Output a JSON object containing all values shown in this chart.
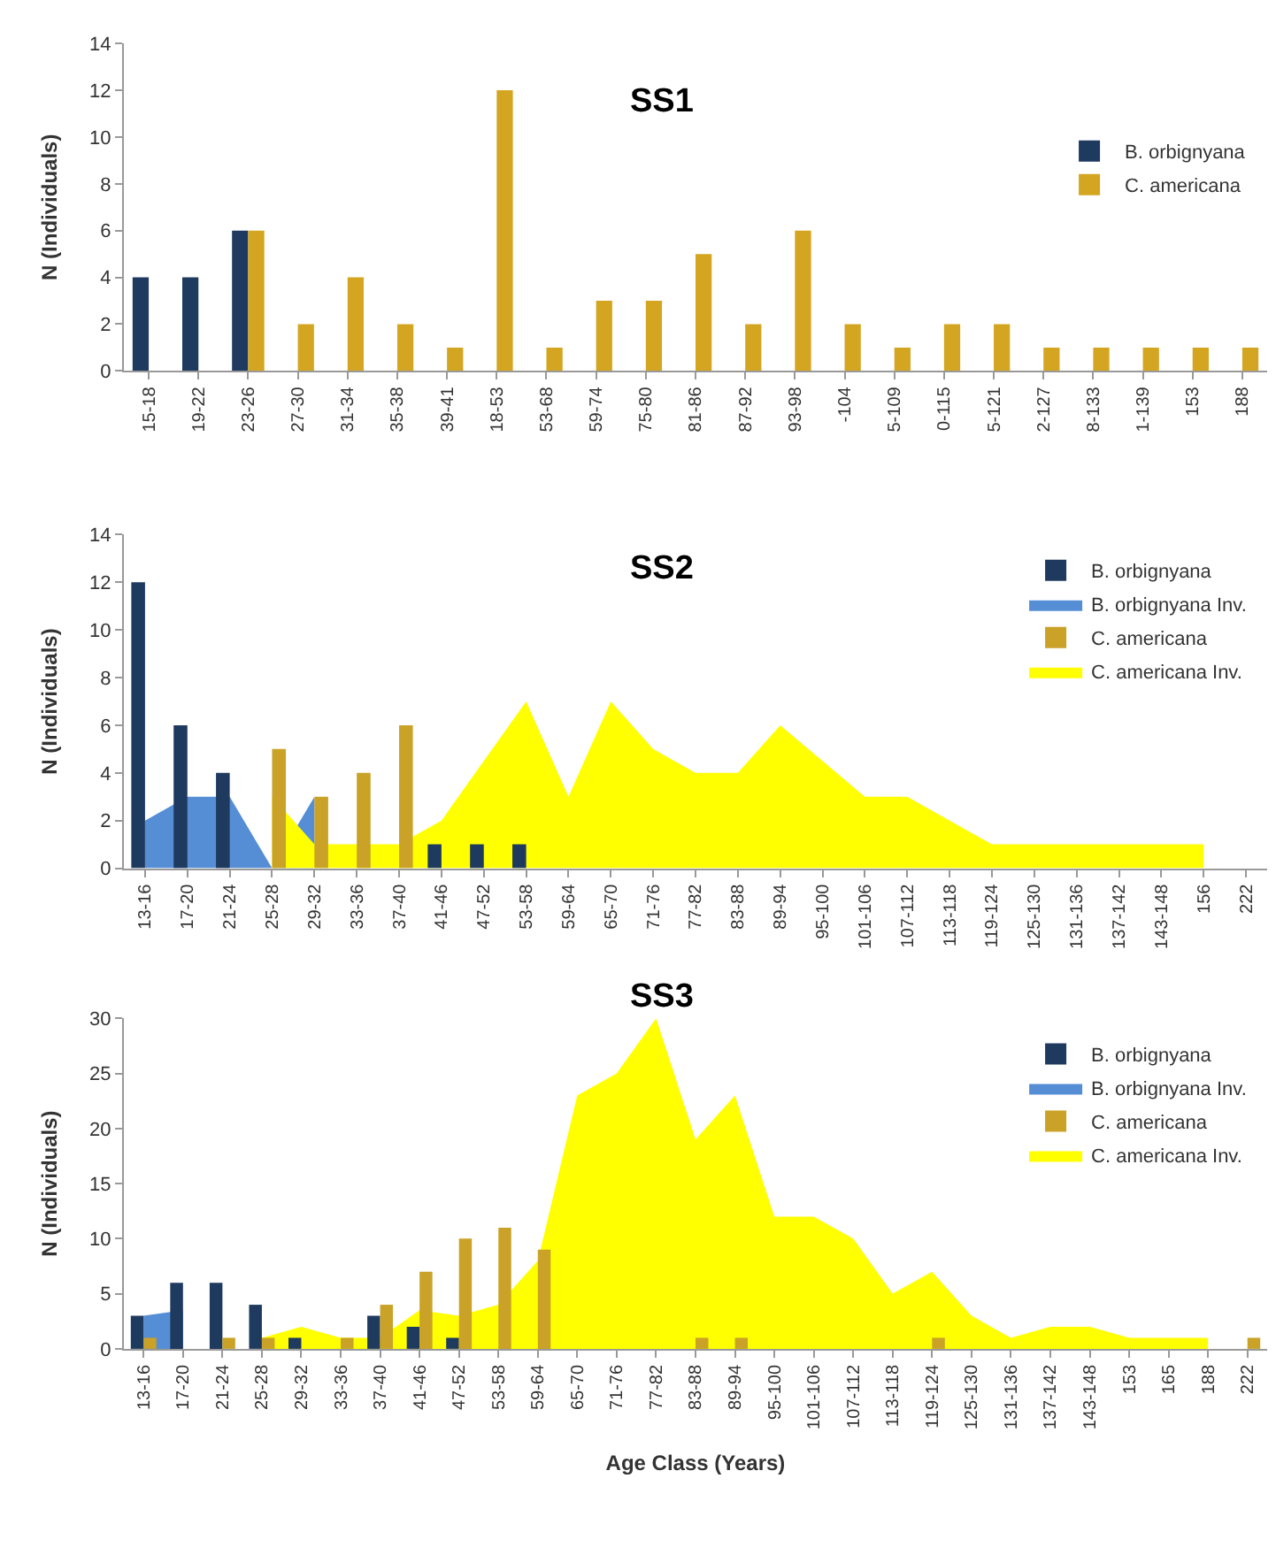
{
  "chart_data": [
    {
      "type": "bar",
      "title": "SS1",
      "ylabel": "N (Individuals)",
      "categories": [
        "15-18",
        "19-22",
        "23-26",
        "27-30",
        "31-34",
        "35-38",
        "39-41",
        "18-53",
        "53-68",
        "59-74",
        "75-80",
        "81-86",
        "87-92",
        "93-98",
        "-104",
        "5-109",
        "0-115",
        "5-121",
        "2-127",
        "8-133",
        "1-139",
        "153",
        "188"
      ],
      "series": [
        {
          "name": "B. orbignyana",
          "color": "#1f3a5f",
          "values": [
            4,
            4,
            6,
            null,
            null,
            null,
            null,
            null,
            null,
            null,
            null,
            null,
            null,
            null,
            null,
            null,
            null,
            null,
            null,
            null,
            null,
            null,
            null
          ]
        },
        {
          "name": "C. americana",
          "color": "#d4a520",
          "values": [
            null,
            null,
            6,
            2,
            4,
            2,
            1,
            12,
            1,
            3,
            3,
            5,
            2,
            6,
            2,
            1,
            2,
            2,
            1,
            1,
            1,
            1,
            1
          ]
        }
      ],
      "ylim": [
        0,
        14
      ],
      "yticks": [
        0,
        2,
        4,
        6,
        8,
        10,
        12,
        14
      ],
      "legend": "right"
    },
    {
      "type": "bar",
      "title": "SS2",
      "ylabel": "N (Individuals)",
      "categories": [
        "13-16",
        "17-20",
        "21-24",
        "25-28",
        "29-32",
        "33-36",
        "37-40",
        "41-46",
        "47-52",
        "53-58",
        "59-64",
        "65-70",
        "71-76",
        "77-82",
        "83-88",
        "89-94",
        "95-100",
        "101-106",
        "107-112",
        "113-118",
        "119-124",
        "125-130",
        "131-136",
        "137-142",
        "143-148",
        "156",
        "222"
      ],
      "series": [
        {
          "name": "B. orbignyana",
          "color": "#1f3a5f",
          "values": [
            12,
            6,
            4,
            null,
            null,
            null,
            null,
            1,
            1,
            1,
            null,
            null,
            null,
            null,
            null,
            null,
            null,
            null,
            null,
            null,
            null,
            null,
            null,
            null,
            null,
            null,
            null
          ]
        },
        {
          "name": "B. orbignyana Inv.",
          "type": "area",
          "color": "#558ed5",
          "values": [
            2,
            3,
            3,
            0,
            3,
            null,
            null,
            null,
            null,
            null,
            null,
            null,
            null,
            null,
            null,
            null,
            null,
            null,
            null,
            null,
            null,
            null,
            null,
            null,
            null,
            null,
            null
          ]
        },
        {
          "name": "C. americana",
          "color": "#c9a227",
          "values": [
            null,
            null,
            null,
            5,
            3,
            4,
            6,
            null,
            null,
            null,
            null,
            null,
            null,
            null,
            null,
            null,
            null,
            null,
            null,
            null,
            null,
            null,
            null,
            null,
            null,
            null,
            null
          ]
        },
        {
          "name": "C. americana Inv.",
          "type": "area",
          "color": "#ffff00",
          "values": [
            null,
            null,
            null,
            3,
            1,
            null,
            1,
            2,
            null,
            7,
            3,
            7,
            5,
            4,
            4,
            6,
            null,
            3,
            3,
            2,
            1,
            1,
            null,
            null,
            1,
            1,
            null
          ]
        }
      ],
      "ylim": [
        0,
        14
      ],
      "yticks": [
        0,
        2,
        4,
        6,
        8,
        10,
        12,
        14
      ],
      "legend": "top right"
    },
    {
      "type": "bar",
      "title": "SS3",
      "ylabel": "N (Individuals)",
      "xlabel": "Age Class (Years)",
      "categories": [
        "13-16",
        "17-20",
        "21-24",
        "25-28",
        "29-32",
        "33-36",
        "37-40",
        "41-46",
        "47-52",
        "53-58",
        "59-64",
        "65-70",
        "71-76",
        "77-82",
        "83-88",
        "89-94",
        "95-100",
        "101-106",
        "107-112",
        "113-118",
        "119-124",
        "125-130",
        "131-136",
        "137-142",
        "143-148",
        "153",
        "165",
        "188",
        "222"
      ],
      "series": [
        {
          "name": "B. orbignyana",
          "color": "#1f3a5f",
          "values": [
            3,
            6,
            6,
            4,
            1,
            null,
            3,
            2,
            1,
            null,
            null,
            null,
            null,
            null,
            null,
            null,
            null,
            null,
            null,
            null,
            null,
            null,
            null,
            null,
            null,
            null,
            null,
            null,
            null
          ]
        },
        {
          "name": "B. orbignyana Inv.",
          "type": "area",
          "color": "#558ed5",
          "values": [
            3,
            3.5,
            null,
            null,
            null,
            null,
            null,
            null,
            null,
            null,
            null,
            null,
            null,
            null,
            null,
            null,
            null,
            null,
            null,
            null,
            null,
            null,
            null,
            null,
            null,
            null,
            null,
            null,
            null
          ]
        },
        {
          "name": "C. americana",
          "color": "#c9a227",
          "values": [
            1,
            null,
            1,
            1,
            null,
            1,
            4,
            7,
            10,
            11,
            9,
            null,
            null,
            null,
            1,
            1,
            null,
            null,
            null,
            null,
            1,
            null,
            null,
            null,
            null,
            null,
            null,
            null,
            1
          ]
        },
        {
          "name": "C. americana Inv.",
          "type": "area",
          "color": "#ffff00",
          "values": [
            null,
            null,
            null,
            1,
            2,
            1,
            1,
            3.5,
            3,
            4,
            8,
            23,
            25,
            30,
            19,
            23,
            12,
            12,
            10,
            5,
            7,
            3,
            1,
            2,
            2,
            1,
            1,
            1,
            null
          ]
        }
      ],
      "ylim": [
        0,
        30
      ],
      "yticks": [
        0,
        5,
        10,
        15,
        20,
        25,
        30
      ],
      "legend": "top right"
    }
  ]
}
